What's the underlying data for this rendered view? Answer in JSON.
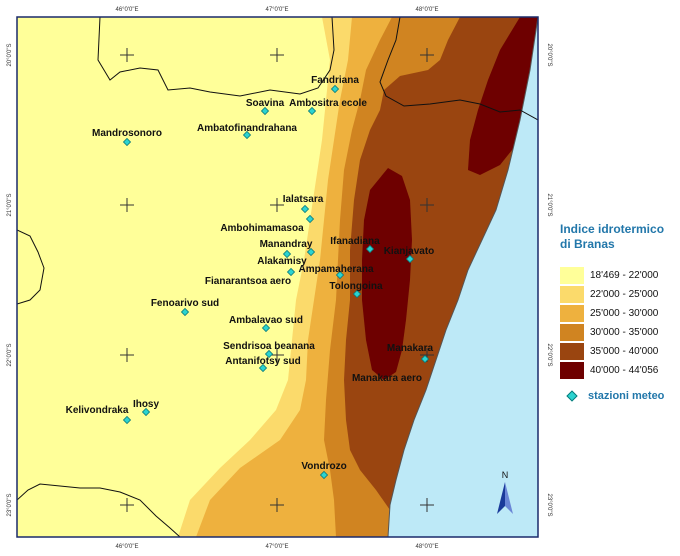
{
  "legend": {
    "title_line1": "Indice idrotermico",
    "title_line2": "di Branas",
    "classes": [
      {
        "label": "18'469 - 22'000",
        "color": "#ffff99"
      },
      {
        "label": "22'000 - 25'000",
        "color": "#fbda6b"
      },
      {
        "label": "25'000 - 30'000",
        "color": "#eeb13e"
      },
      {
        "label": "30'000 - 35'000",
        "color": "#d08421"
      },
      {
        "label": "35'000 - 40'000",
        "color": "#9a4510"
      },
      {
        "label": "40'000 - 44'056",
        "color": "#6e0000"
      }
    ],
    "stations_label": "stazioni meteo"
  },
  "colors": {
    "sea": "#bde9f7",
    "border_frame": "#1a2a6a",
    "station_fill": "#2bd3d0",
    "coast": "#111111"
  },
  "graticule": {
    "lon_labels": [
      "46°0'0\"E",
      "47°0'0\"E",
      "48°0'0\"E"
    ],
    "lat_labels": [
      "20°0'0\"S",
      "21°0'0\"S",
      "22°0'0\"S",
      "23°0'0\"S"
    ]
  },
  "north_arrow_label": "N",
  "stations": [
    {
      "name": "Fandriana"
    },
    {
      "name": "Soavina"
    },
    {
      "name": "Ambositra ecole"
    },
    {
      "name": "Mandrosonoro"
    },
    {
      "name": "Ambatofinandrahana"
    },
    {
      "name": "Ialatsara"
    },
    {
      "name": "Ambohimamasoa"
    },
    {
      "name": "Ifanadiana"
    },
    {
      "name": "Kianjavato"
    },
    {
      "name": "Manandray"
    },
    {
      "name": "Alakamisy"
    },
    {
      "name": "Ampamaherana"
    },
    {
      "name": "Fianarantsoa aero"
    },
    {
      "name": "Tolongoina"
    },
    {
      "name": "Fenoarivo sud"
    },
    {
      "name": "Ambalavao sud"
    },
    {
      "name": "Sendrisoa beanana"
    },
    {
      "name": "Manakara"
    },
    {
      "name": "Antanifotsy sud"
    },
    {
      "name": "Manakara aero"
    },
    {
      "name": "Ihosy"
    },
    {
      "name": "Kelivondraka"
    },
    {
      "name": "Vondrozo"
    }
  ]
}
